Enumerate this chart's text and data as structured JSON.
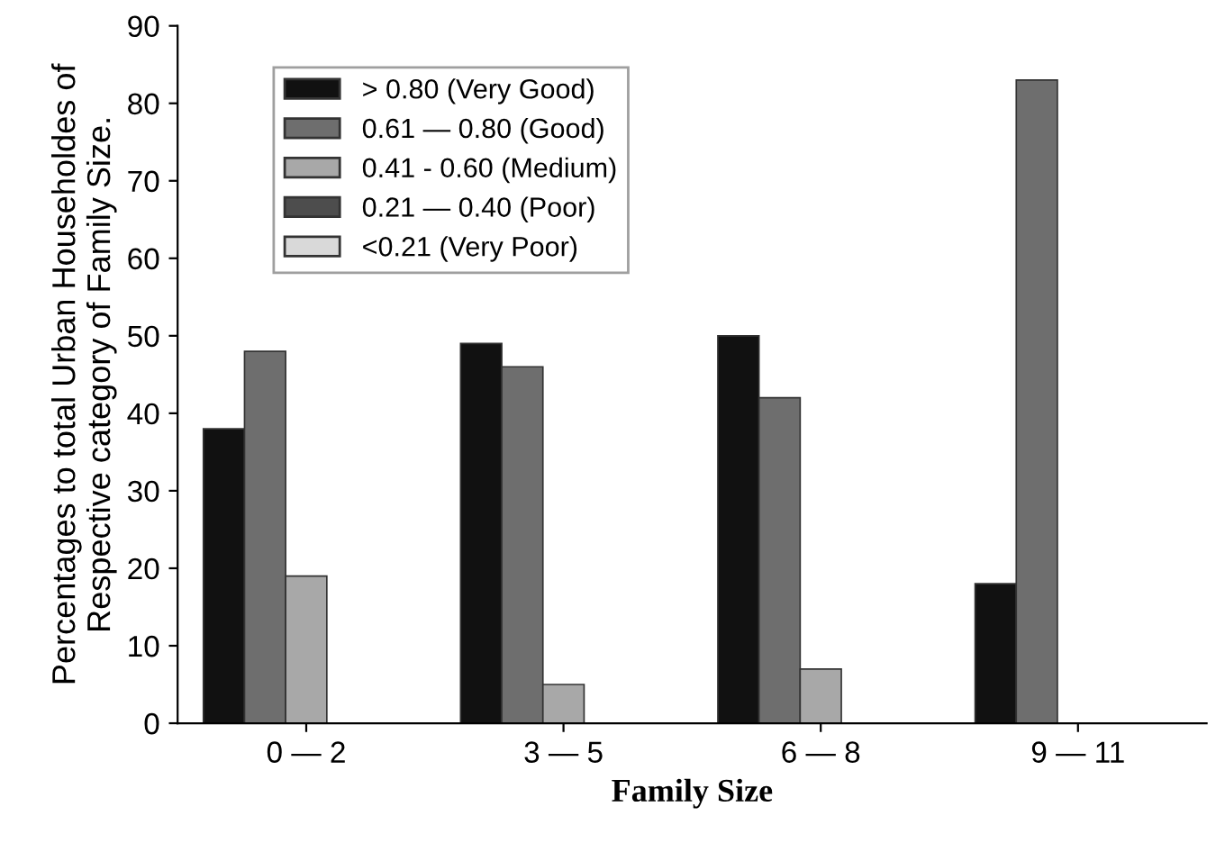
{
  "chart_data": {
    "type": "bar",
    "xlabel": "Family Size",
    "ylabel": "Percentages to total Urban Householdes of\nRespective category of Family Size.",
    "categories": [
      "0 — 2",
      "3 — 5",
      "6 — 8",
      "9 — 11"
    ],
    "series": [
      {
        "name": "> 0.80 (Very Good)",
        "color": "#111111",
        "values": [
          38,
          49,
          50,
          18
        ]
      },
      {
        "name": "0.61 — 0.80 (Good)",
        "color": "#6e6e6e",
        "values": [
          48,
          46,
          42,
          83
        ]
      },
      {
        "name": "0.41 - 0.60 (Medium)",
        "color": "#a8a8a8",
        "values": [
          19,
          5,
          7,
          null
        ]
      },
      {
        "name": "0.21 — 0.40 (Poor)",
        "color": "#4d4d4d",
        "values": [
          null,
          null,
          null,
          null
        ]
      },
      {
        "name": "<0.21 (Very Poor)",
        "color": "#d9d9d9",
        "values": [
          null,
          null,
          null,
          null
        ]
      }
    ],
    "ylim": [
      0,
      90
    ],
    "yticks": [
      0,
      10,
      20,
      30,
      40,
      50,
      60,
      70,
      80,
      90
    ],
    "grid": false,
    "legend": "top left"
  }
}
